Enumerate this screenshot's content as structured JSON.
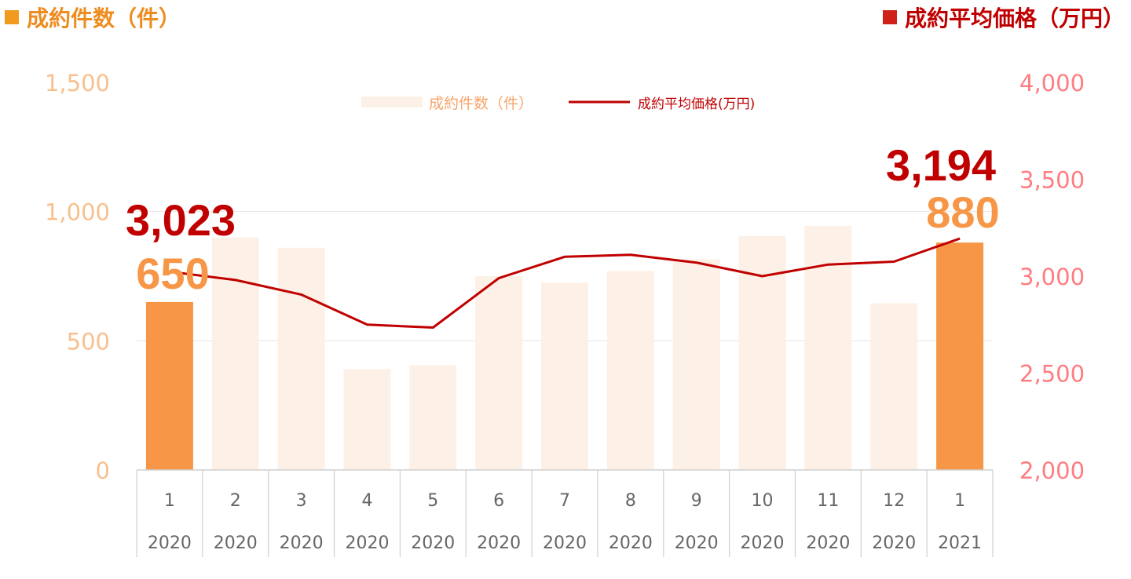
{
  "header": {
    "left_title": "成約件数（件）",
    "right_title": "成約平均価格（万円）"
  },
  "colors": {
    "bar_highlight": "#f79646",
    "bar_faded": "#fdf0e6",
    "line": "#c00000",
    "left_axis_text": "#f8c08f",
    "right_axis_text": "#ff7c80",
    "left_title": "#ed8c1f",
    "right_title": "#c00000"
  },
  "chart_data": {
    "type": "bar",
    "categories": [
      [
        "1",
        "2020"
      ],
      [
        "2",
        "2020"
      ],
      [
        "3",
        "2020"
      ],
      [
        "4",
        "2020"
      ],
      [
        "5",
        "2020"
      ],
      [
        "6",
        "2020"
      ],
      [
        "7",
        "2020"
      ],
      [
        "8",
        "2020"
      ],
      [
        "9",
        "2020"
      ],
      [
        "10",
        "2020"
      ],
      [
        "11",
        "2020"
      ],
      [
        "12",
        "2020"
      ],
      [
        "1",
        "2021"
      ]
    ],
    "series": [
      {
        "name": "成約件数（件）",
        "kind": "bar",
        "axis": "left",
        "values": [
          650,
          900,
          860,
          390,
          405,
          750,
          725,
          770,
          815,
          905,
          945,
          645,
          880
        ],
        "highlight_indices": [
          0,
          12
        ]
      },
      {
        "name": "成約平均価格(万円)",
        "kind": "line",
        "axis": "right",
        "values": [
          3023,
          2980,
          2905,
          2750,
          2735,
          2990,
          3100,
          3110,
          3070,
          3000,
          3060,
          3075,
          3194
        ]
      }
    ],
    "left_axis": {
      "min": 0,
      "max": 1500,
      "ticks": [
        "0",
        "500",
        "1,000",
        "1,500"
      ]
    },
    "right_axis": {
      "min": 2000,
      "max": 4000,
      "ticks": [
        "2,000",
        "2,500",
        "3,000",
        "3,500",
        "4,000"
      ]
    },
    "annotations": {
      "first_price": "3,023",
      "first_count": "650",
      "last_price": "3,194",
      "last_count": "880"
    },
    "grid": true,
    "legend": "top-center"
  }
}
